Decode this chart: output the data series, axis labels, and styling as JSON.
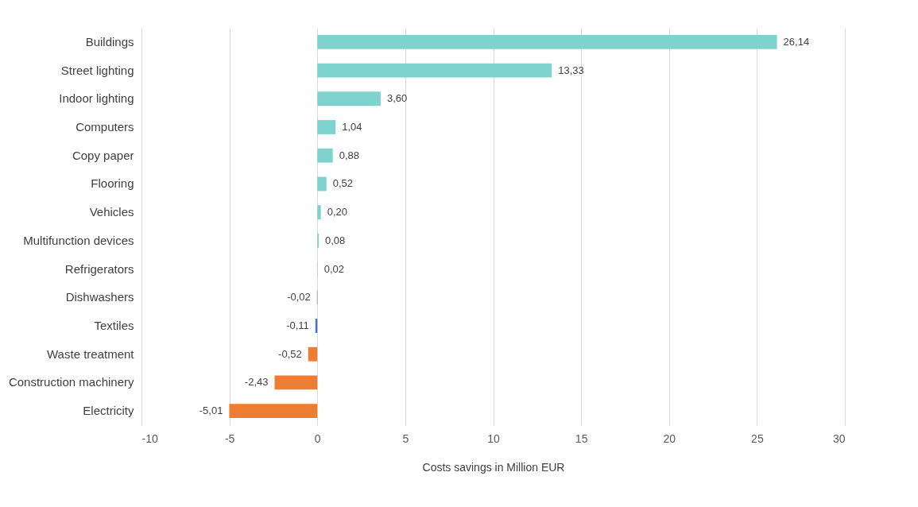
{
  "chart_data": {
    "type": "bar",
    "orientation": "horizontal",
    "xlabel": "Costs savings in Million EUR",
    "categories": [
      "Buildings",
      "Street lighting",
      "Indoor lighting",
      "Computers",
      "Copy paper",
      "Flooring",
      "Vehicles",
      "Multifunction devices",
      "Refrigerators",
      "Dishwashers",
      "Textiles",
      "Waste treatment",
      "Construction machinery",
      "Electricity"
    ],
    "values": [
      26.14,
      13.33,
      3.6,
      1.04,
      0.88,
      0.52,
      0.2,
      0.08,
      0.02,
      -0.02,
      -0.11,
      -0.52,
      -2.43,
      -5.01
    ],
    "value_labels": [
      "26,14",
      "13,33",
      "3,60",
      "1,04",
      "0,88",
      "0,52",
      "0,20",
      "0,08",
      "0,02",
      "-0,02",
      "-0,11",
      "-0,52",
      "-2,43",
      "-5,01"
    ],
    "colors": [
      "#7fd3cf",
      "#7fd3cf",
      "#7fd3cf",
      "#7fd3cf",
      "#7fd3cf",
      "#7fd3cf",
      "#7fd3cf",
      "#7fd3cf",
      "#7fd3cf",
      "#4472c4",
      "#4472c4",
      "#ed7d31",
      "#ed7d31",
      "#ed7d31"
    ],
    "xlim": [
      -10,
      30
    ],
    "xticks": [
      -10,
      -5,
      0,
      5,
      10,
      15,
      20,
      25,
      30
    ],
    "grid": "x"
  }
}
